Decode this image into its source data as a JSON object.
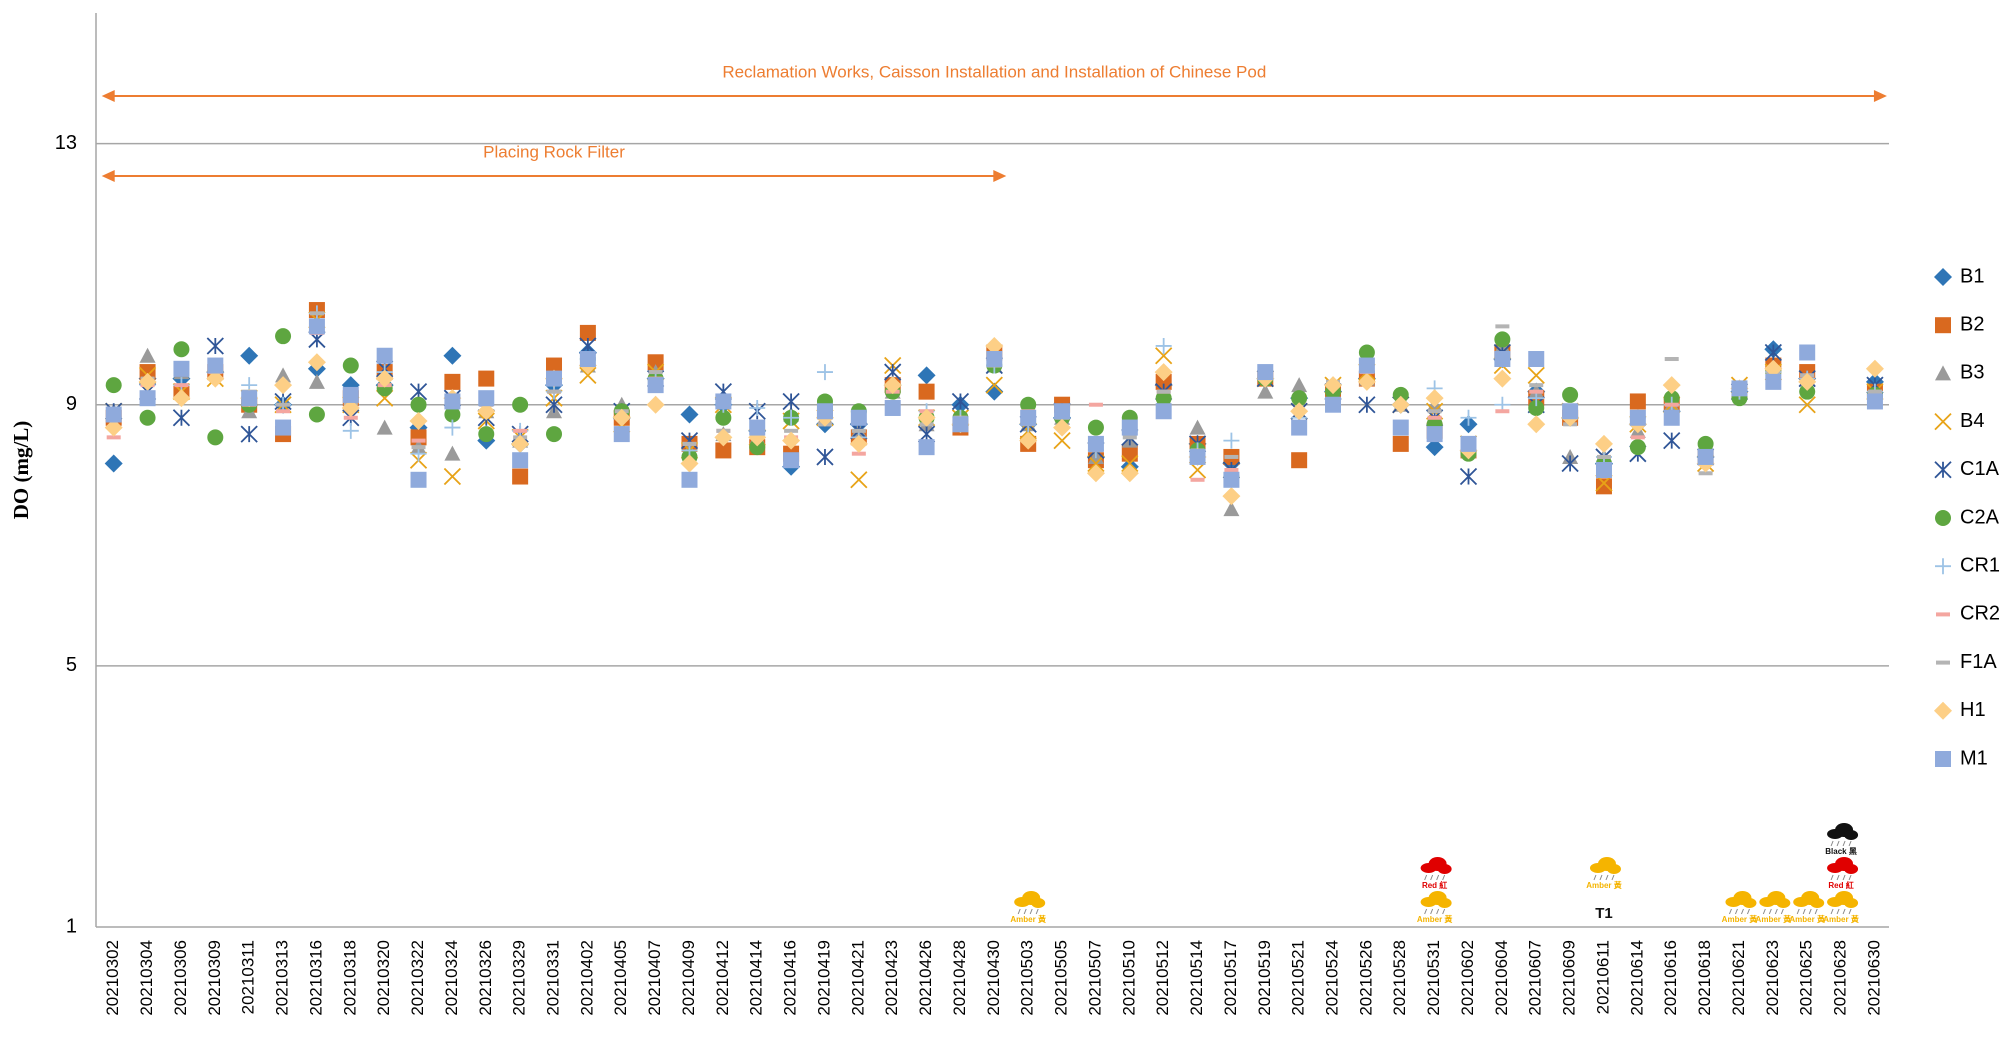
{
  "chart_data": {
    "type": "scatter",
    "y_label": "DO (mg/L)",
    "categories": [
      "20210302",
      "20210304",
      "20210306",
      "20210309",
      "20210311",
      "20210313",
      "20210316",
      "20210318",
      "20210320",
      "20210322",
      "20210324",
      "20210326",
      "20210329",
      "20210331",
      "20210402",
      "20210405",
      "20210407",
      "20210409",
      "20210412",
      "20210414",
      "20210416",
      "20210419",
      "20210421",
      "20210423",
      "20210426",
      "20210428",
      "20210430",
      "20210503",
      "20210505",
      "20210507",
      "20210510",
      "20210512",
      "20210514",
      "20210517",
      "20210519",
      "20210521",
      "20210524",
      "20210526",
      "20210528",
      "20210531",
      "20210602",
      "20210604",
      "20210607",
      "20210609",
      "20210611",
      "20210614",
      "20210616",
      "20210618",
      "20210621",
      "20210623",
      "20210625",
      "20210628",
      "20210630"
    ],
    "ylim": [
      1,
      15
    ],
    "yticks": [
      1,
      5,
      9,
      13
    ],
    "grid": true,
    "series": [
      {
        "name": "B1",
        "color": "#2e75b6",
        "marker": "diamond",
        "values": [
          8.1,
          9.4,
          9.4,
          9.5,
          9.75,
          9.0,
          9.55,
          9.3,
          9.3,
          8.65,
          9.75,
          8.45,
          8.4,
          9.3,
          9.8,
          8.8,
          9.4,
          8.85,
          9.0,
          8.6,
          8.05,
          8.7,
          8.7,
          9.3,
          9.45,
          9.0,
          9.2,
          8.7,
          8.8,
          8.2,
          8.05,
          9.3,
          8.4,
          8.1,
          9.4,
          9.1,
          9.2,
          9.4,
          9.0,
          8.35,
          8.7,
          9.7,
          9.2,
          8.8,
          8.1,
          8.7,
          8.9,
          8.2,
          9.2,
          9.85,
          9.4,
          null,
          9.35
        ]
      },
      {
        "name": "B2",
        "color": "#d9691f",
        "marker": "square",
        "values": [
          8.8,
          9.5,
          9.2,
          9.5,
          9.0,
          8.55,
          10.45,
          9.1,
          9.5,
          8.5,
          9.35,
          9.4,
          7.9,
          9.6,
          10.1,
          8.8,
          9.65,
          8.4,
          8.3,
          8.35,
          8.25,
          8.9,
          8.5,
          9.3,
          9.2,
          8.65,
          9.8,
          8.4,
          9.0,
          8.15,
          8.25,
          9.35,
          8.4,
          8.2,
          9.4,
          8.15,
          9.2,
          9.4,
          8.4,
          8.6,
          8.3,
          9.8,
          9.1,
          8.8,
          7.75,
          9.05,
          9.0,
          8.2,
          9.2,
          9.6,
          9.5,
          null,
          9.2
        ]
      },
      {
        "name": "B3",
        "color": "#9a9a9a",
        "marker": "triangle",
        "values": [
          8.9,
          9.75,
          9.5,
          9.6,
          8.9,
          9.45,
          9.35,
          9.0,
          8.65,
          8.35,
          8.25,
          8.9,
          8.45,
          8.9,
          9.6,
          9.0,
          9.5,
          8.3,
          8.55,
          8.5,
          8.85,
          8.8,
          8.6,
          9.2,
          8.7,
          8.8,
          9.6,
          8.7,
          8.8,
          8.2,
          8.45,
          9.1,
          8.65,
          7.4,
          9.2,
          9.3,
          9.3,
          9.4,
          9.0,
          9.0,
          8.3,
          9.9,
          9.2,
          8.2,
          8.2,
          8.6,
          9.0,
          8.2,
          9.2,
          9.5,
          9.4,
          null,
          9.2
        ]
      },
      {
        "name": "B4",
        "color": "#e8a317",
        "marker": "x",
        "values": [
          8.9,
          9.45,
          9.2,
          9.4,
          9.1,
          9.0,
          10.3,
          9.0,
          9.1,
          8.15,
          7.9,
          8.75,
          8.5,
          9.1,
          9.45,
          8.7,
          9.5,
          8.3,
          9.0,
          8.5,
          8.75,
          8.8,
          7.85,
          9.6,
          8.8,
          8.8,
          9.3,
          8.6,
          8.45,
          8.1,
          8.1,
          9.75,
          8.0,
          8.0,
          9.4,
          8.9,
          9.3,
          9.5,
          9.0,
          8.9,
          8.4,
          9.6,
          9.45,
          8.9,
          7.8,
          8.7,
          9.0,
          8.1,
          9.3,
          9.5,
          9.0,
          null,
          9.2
        ]
      },
      {
        "name": "C1A",
        "color": "#2f5597",
        "marker": "star",
        "values": [
          8.9,
          9.2,
          8.8,
          9.9,
          8.55,
          9.05,
          10.0,
          8.8,
          9.55,
          9.2,
          9.1,
          8.8,
          8.55,
          9.0,
          9.9,
          8.9,
          9.4,
          8.45,
          9.2,
          8.9,
          9.05,
          8.2,
          8.6,
          9.5,
          8.55,
          9.05,
          9.6,
          8.7,
          8.9,
          8.3,
          8.5,
          9.2,
          8.4,
          8.0,
          9.4,
          8.9,
          9.2,
          9.0,
          9.0,
          8.8,
          7.9,
          9.8,
          9.0,
          8.1,
          8.2,
          8.25,
          8.45,
          8.2,
          9.2,
          9.8,
          9.4,
          null,
          9.3
        ]
      },
      {
        "name": "C2A",
        "color": "#5ea640",
        "marker": "circle",
        "values": [
          9.3,
          8.8,
          9.85,
          8.5,
          9.0,
          10.05,
          8.85,
          9.6,
          9.25,
          9.0,
          8.85,
          8.55,
          9.0,
          8.55,
          9.7,
          8.9,
          9.4,
          8.2,
          8.8,
          8.35,
          8.8,
          9.05,
          8.9,
          9.2,
          8.8,
          8.8,
          9.6,
          9.0,
          8.8,
          8.65,
          8.8,
          9.1,
          8.3,
          7.9,
          9.4,
          9.1,
          9.2,
          9.8,
          9.15,
          8.7,
          8.25,
          10.0,
          8.95,
          9.15,
          8.1,
          8.35,
          9.1,
          8.4,
          9.1,
          9.5,
          9.2,
          null,
          9.15
        ]
      },
      {
        "name": "CR1",
        "color": "#9dc3e6",
        "marker": "plus",
        "values": [
          8.8,
          9.3,
          9.3,
          9.5,
          9.3,
          9.0,
          10.4,
          8.6,
          9.5,
          8.25,
          8.65,
          8.9,
          8.6,
          9.2,
          9.7,
          8.8,
          9.4,
          8.3,
          9.0,
          8.95,
          8.8,
          9.5,
          8.5,
          9.3,
          8.9,
          8.8,
          9.6,
          8.7,
          8.8,
          8.3,
          8.6,
          9.9,
          8.3,
          8.45,
          9.4,
          8.8,
          9.3,
          9.5,
          9.0,
          9.25,
          8.8,
          9.0,
          9.1,
          8.8,
          8.2,
          8.8,
          9.0,
          8.2,
          9.2,
          9.5,
          9.4,
          null,
          9.2
        ]
      },
      {
        "name": "CR2",
        "color": "#f4a6a0",
        "marker": "dash",
        "values": [
          8.5,
          9.3,
          9.3,
          9.5,
          9.0,
          8.9,
          10.1,
          8.8,
          9.3,
          8.45,
          9.0,
          9.0,
          8.6,
          9.2,
          9.7,
          8.8,
          9.4,
          8.4,
          8.6,
          8.5,
          8.5,
          8.7,
          8.25,
          9.2,
          8.9,
          8.8,
          9.6,
          8.9,
          8.9,
          9.0,
          8.6,
          9.2,
          7.85,
          8.0,
          9.4,
          8.9,
          9.0,
          9.5,
          9.0,
          8.8,
          8.3,
          8.9,
          9.2,
          8.9,
          8.2,
          8.5,
          9.0,
          8.2,
          9.2,
          9.5,
          9.45,
          null,
          9.2
        ]
      },
      {
        "name": "F1A",
        "color": "#b4b4b4",
        "marker": "dash",
        "values": [
          8.8,
          9.4,
          9.5,
          9.6,
          9.2,
          9.0,
          10.4,
          9.0,
          9.4,
          8.35,
          9.1,
          9.0,
          8.5,
          9.2,
          9.7,
          8.9,
          9.5,
          8.4,
          8.6,
          8.5,
          8.6,
          8.7,
          8.6,
          9.3,
          8.7,
          8.8,
          9.6,
          8.7,
          8.8,
          8.3,
          8.5,
          9.2,
          8.3,
          8.2,
          9.4,
          8.7,
          9.35,
          9.6,
          9.0,
          8.9,
          8.3,
          10.2,
          9.3,
          8.7,
          8.2,
          8.7,
          9.7,
          7.95,
          9.2,
          9.5,
          9.45,
          null,
          9.2
        ]
      },
      {
        "name": "H1",
        "color": "#fdcf86",
        "marker": "diamond",
        "values": [
          8.65,
          9.35,
          9.1,
          9.4,
          9.1,
          9.3,
          9.65,
          8.95,
          9.4,
          8.75,
          9.1,
          8.9,
          8.4,
          9.4,
          9.6,
          8.8,
          9.0,
          8.1,
          8.5,
          8.5,
          8.45,
          8.8,
          8.4,
          9.3,
          8.8,
          8.7,
          9.9,
          8.45,
          8.65,
          7.95,
          7.95,
          9.5,
          8.2,
          7.6,
          9.4,
          8.9,
          9.3,
          9.35,
          9.0,
          9.1,
          8.3,
          9.4,
          8.7,
          8.8,
          8.4,
          8.7,
          9.3,
          8.1,
          9.25,
          9.55,
          9.35,
          null,
          9.55
        ]
      },
      {
        "name": "M1",
        "color": "#8faadc",
        "marker": "square",
        "values": [
          8.85,
          9.1,
          9.55,
          9.6,
          9.1,
          8.65,
          10.2,
          9.15,
          9.75,
          7.85,
          9.05,
          9.1,
          8.15,
          9.4,
          9.7,
          8.55,
          9.3,
          7.85,
          9.05,
          8.65,
          8.15,
          8.9,
          8.8,
          8.95,
          8.35,
          8.7,
          9.7,
          8.8,
          8.9,
          8.4,
          8.65,
          8.9,
          8.2,
          7.85,
          9.5,
          8.65,
          9.0,
          9.6,
          8.65,
          8.55,
          8.4,
          9.7,
          9.7,
          8.9,
          8.0,
          8.8,
          8.8,
          8.2,
          9.25,
          9.35,
          9.8,
          null,
          9.05
        ]
      }
    ],
    "annotations": [
      {
        "text": "Reclamation Works, Caisson Installation and Installation of Chinese Pod",
        "start": "20210302",
        "end": "20210630",
        "color": "#ed7d31"
      },
      {
        "text": "Placing Rock Filter",
        "start": "20210302",
        "end": "20210430",
        "color": "#ed7d31"
      }
    ],
    "signals": [
      {
        "category": "20210503",
        "label": "Amber 黃",
        "color": "#f5b400"
      },
      {
        "category": "20210531",
        "label": "Amber 黃",
        "color": "#f5b400"
      },
      {
        "category": "20210531",
        "label": "Red 紅",
        "color": "#e00000"
      },
      {
        "category": "20210611",
        "label": "T1",
        "color": "#111111"
      },
      {
        "category": "20210611",
        "label": "Amber 黃",
        "color": "#f5b400"
      },
      {
        "category": "20210621",
        "label": "Amber 黃",
        "color": "#f5b400"
      },
      {
        "category": "20210623",
        "label": "Amber 黃",
        "color": "#f5b400"
      },
      {
        "category": "20210625",
        "label": "Amber 黃",
        "color": "#f5b400"
      },
      {
        "category": "20210628",
        "label": "Amber 黃",
        "color": "#f5b400"
      },
      {
        "category": "20210628",
        "label": "Red 紅",
        "color": "#e00000"
      },
      {
        "category": "20210628",
        "label": "Black 黑",
        "color": "#111111"
      }
    ]
  }
}
